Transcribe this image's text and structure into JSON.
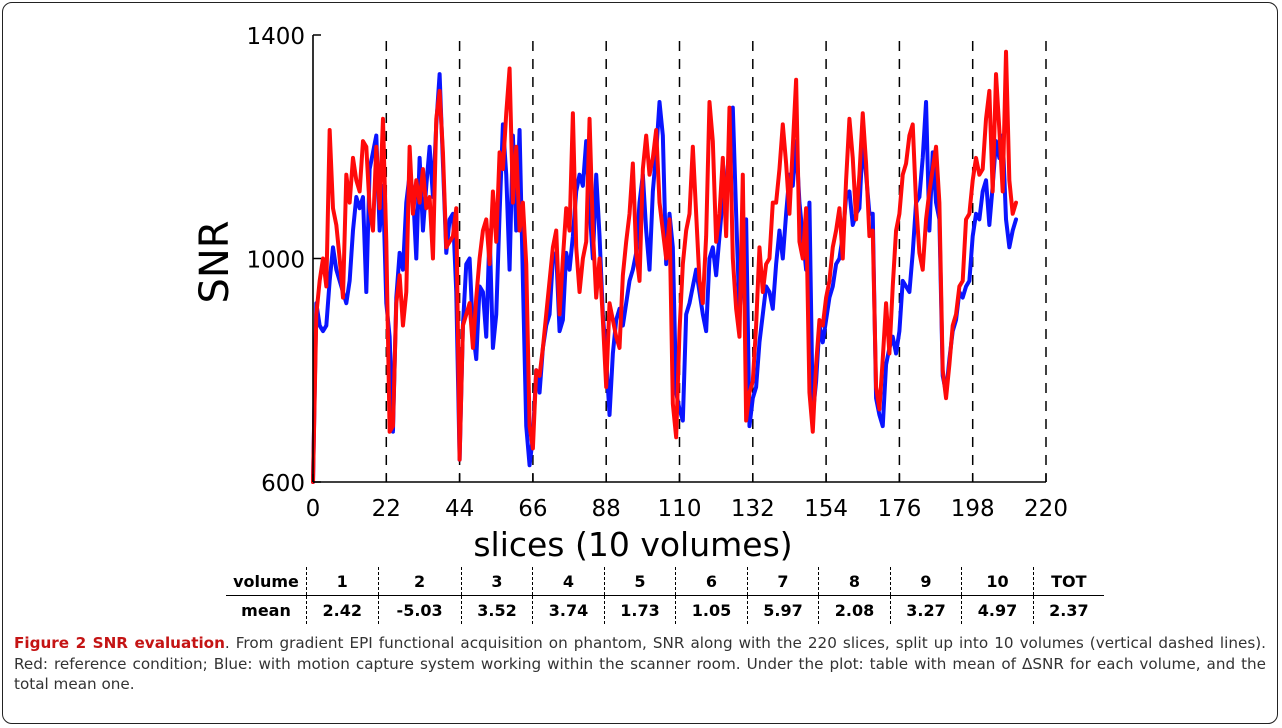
{
  "chart_data": {
    "type": "line",
    "xlabel": "slices (10 volumes)",
    "ylabel": "SNR",
    "xlim": [
      0,
      220
    ],
    "ylim": [
      600,
      1400
    ],
    "x_ticks": [
      "0",
      "22",
      "44",
      "66",
      "88",
      "110",
      "132",
      "154",
      "176",
      "198",
      "220"
    ],
    "y_ticks": [
      "600",
      "1000",
      "1400"
    ],
    "volume_boundaries": [
      22,
      44,
      66,
      88,
      110,
      132,
      154,
      176,
      198,
      220
    ],
    "series": [
      {
        "color": "#0a14ff",
        "values": [
          600,
          920,
          880,
          870,
          880,
          960,
          1020,
          980,
          960,
          940,
          920,
          960,
          1050,
          1110,
          1090,
          1110,
          940,
          1160,
          1190,
          1220,
          1050,
          1130,
          920,
          860,
          690,
          930,
          1010,
          980,
          1100,
          1150,
          1120,
          1000,
          1180,
          1050,
          1130,
          1200,
          1110,
          1240,
          1330,
          1170,
          1010,
          1070,
          1080,
          940,
          640,
          880,
          990,
          1000,
          870,
          820,
          950,
          940,
          860,
          1050,
          840,
          900,
          1080,
          1240,
          1150,
          980,
          1220,
          1050,
          1230,
          960,
          700,
          630,
          680,
          800,
          760,
          840,
          880,
          900,
          1000,
          1010,
          870,
          890,
          1010,
          980,
          1040,
          1120,
          1150,
          1130,
          1210,
          1090,
          1000,
          1150,
          1040,
          900,
          820,
          720,
          830,
          890,
          910,
          880,
          920,
          960,
          980,
          1010,
          1100,
          1150,
          1050,
          980,
          1120,
          1190,
          1280,
          1220,
          990,
          1080,
          1020,
          760,
          730,
          710,
          900,
          920,
          950,
          980,
          940,
          900,
          870,
          1000,
          1020,
          970,
          1040,
          1110,
          1130,
          1200,
          1270,
          1080,
          900,
          1000,
          1070,
          700,
          750,
          770,
          850,
          900,
          950,
          940,
          910,
          990,
          1050,
          1000,
          1080,
          1150,
          1130,
          1210,
          1100,
          1040,
          980,
          1100,
          720,
          780,
          880,
          850,
          890,
          930,
          950,
          990,
          1000,
          1040,
          1110,
          1120,
          1060,
          1080,
          1090,
          1210,
          1150,
          1080,
          1080,
          750,
          720,
          700,
          810,
          840,
          860,
          830,
          870,
          960,
          950,
          940,
          1010,
          1100,
          1110,
          1180,
          1280,
          1050,
          1190,
          1100,
          1070,
          790,
          760,
          820,
          870,
          890,
          940,
          930,
          950,
          960,
          1040,
          1080,
          1070,
          1120,
          1140,
          1060,
          1130,
          1210,
          1180,
          1220,
          1070,
          1020,
          1050,
          1070
        ],
        "name": ""
      },
      {
        "color": "#ff0a0a",
        "values": [
          600,
          900,
          960,
          1000,
          950,
          1230,
          1090,
          1060,
          1000,
          930,
          1150,
          1100,
          1180,
          1140,
          1120,
          1210,
          1200,
          1090,
          1050,
          1200,
          1090,
          1250,
          1030,
          690,
          700,
          920,
          970,
          880,
          940,
          1200,
          1080,
          1140,
          1100,
          1160,
          1090,
          1110,
          1000,
          1250,
          1300,
          1190,
          1020,
          1030,
          1040,
          1090,
          640,
          880,
          900,
          920,
          840,
          930,
          1000,
          1050,
          1070,
          990,
          1120,
          1030,
          1190,
          1160,
          1260,
          1340,
          1100,
          1200,
          1050,
          1100,
          990,
          700,
          660,
          800,
          790,
          840,
          900,
          960,
          1020,
          1050,
          900,
          1000,
          1090,
          1050,
          1260,
          1020,
          940,
          1000,
          1030,
          1250,
          1050,
          930,
          1000,
          890,
          770,
          920,
          890,
          860,
          840,
          970,
          1030,
          1080,
          1170,
          1010,
          960,
          1160,
          1220,
          1150,
          1180,
          1230,
          1100,
          1050,
          1000,
          1070,
          740,
          680,
          870,
          990,
          1050,
          1080,
          1200,
          1080,
          960,
          920,
          1040,
          1280,
          1210,
          1030,
          1080,
          1180,
          1040,
          1270,
          1000,
          910,
          860,
          1150,
          710,
          760,
          780,
          880,
          1020,
          940,
          990,
          1000,
          1100,
          1100,
          1160,
          1240,
          1170,
          1080,
          1200,
          1320,
          1030,
          1000,
          1090,
          760,
          690,
          810,
          890,
          880,
          930,
          960,
          1020,
          1050,
          1090,
          1000,
          1140,
          1250,
          1180,
          1070,
          1150,
          1260,
          1170,
          1040,
          1050,
          770,
          730,
          820,
          920,
          830,
          950,
          1050,
          1080,
          1150,
          1170,
          1220,
          1240,
          1100,
          1010,
          980,
          1070,
          1120,
          1160,
          1200,
          1100,
          800,
          750,
          810,
          880,
          900,
          950,
          960,
          1070,
          1080,
          1140,
          1180,
          1150,
          1160,
          1250,
          1300,
          1120,
          1330,
          1230,
          1120,
          1370,
          1140,
          1080,
          1100
        ]
      }
    ],
    "table": {
      "headers": [
        "volume",
        "1",
        "2",
        "3",
        "4",
        "5",
        "6",
        "7",
        "8",
        "9",
        "10",
        "TOT"
      ],
      "rows": [
        [
          "mean",
          "2.42",
          "-5.03",
          "3.52",
          "3.74",
          "1.73",
          "1.05",
          "5.97",
          "2.08",
          "3.27",
          "4.97",
          "2.37"
        ]
      ]
    }
  },
  "caption": {
    "title": "Figure 2 SNR evaluation",
    "text": ". From gradient EPI functional acquisition on phantom, SNR along with the 220 slices, split up into 10 volumes (vertical dashed lines). Red: reference condition; Blue: with motion capture system working within the scanner room. Under the plot: table with mean of ΔSNR for each volume, and the total mean one."
  }
}
